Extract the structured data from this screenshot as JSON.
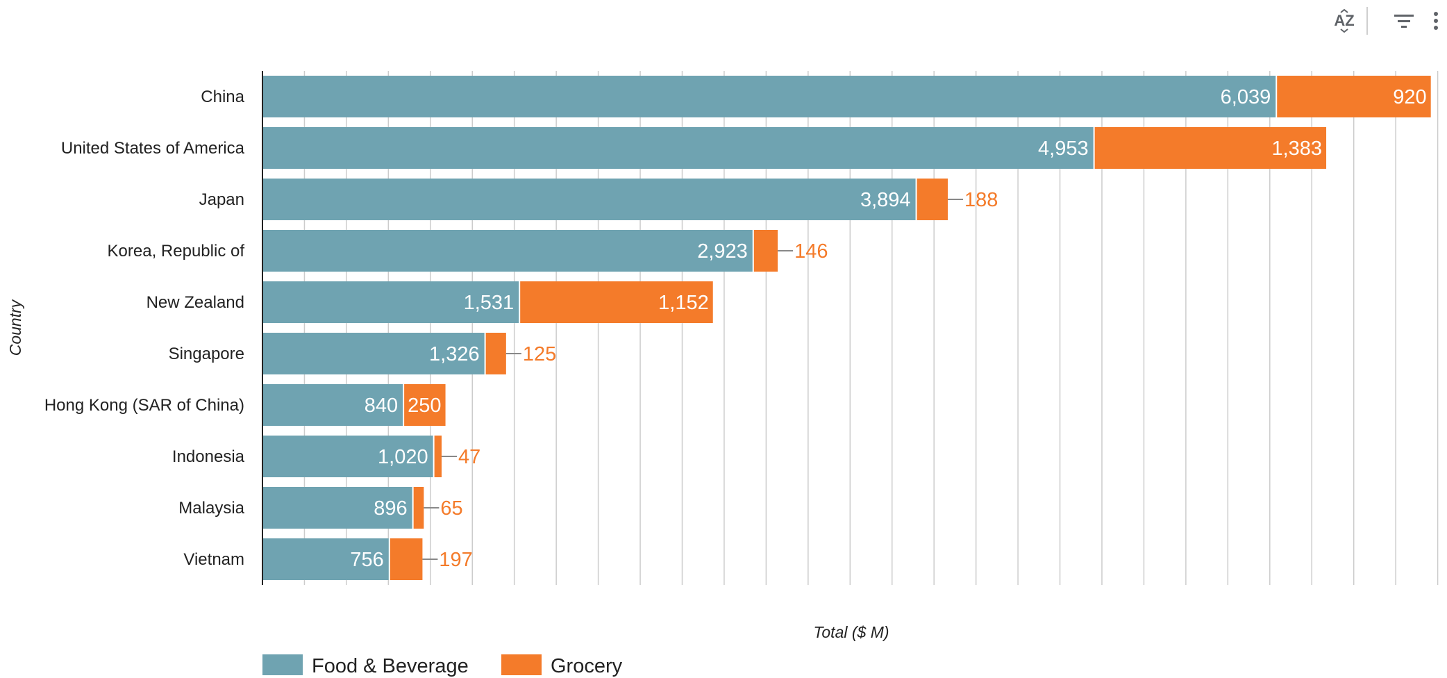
{
  "toolbar": {
    "sort_icon": "sort-az-icon",
    "sort_label": "AZ",
    "filter_icon": "filter-icon",
    "more_icon": "more-vert-icon"
  },
  "colors": {
    "food_beverage": "#6FA3B1",
    "grocery": "#F47B2A",
    "grid": "#cccccc",
    "axis": "#222222"
  },
  "chart_data": {
    "type": "bar",
    "orientation": "horizontal",
    "stacked": true,
    "categories": [
      "China",
      "United States of America",
      "Japan",
      "Korea, Republic of",
      "New Zealand",
      "Singapore",
      "Hong Kong (SAR of China)",
      "Indonesia",
      "Malaysia",
      "Vietnam"
    ],
    "series": [
      {
        "name": "Food & Beverage",
        "values": [
          6039,
          4953,
          3894,
          2923,
          1531,
          1326,
          840,
          1020,
          896,
          756
        ]
      },
      {
        "name": "Grocery",
        "values": [
          920,
          1383,
          188,
          146,
          1152,
          125,
          250,
          47,
          65,
          197
        ]
      }
    ],
    "xlabel": "Total ($ M)",
    "ylabel": "Country",
    "xlim": [
      0,
      7000
    ],
    "grid_step": 250,
    "grid": true,
    "legend_position": "bottom-left"
  }
}
